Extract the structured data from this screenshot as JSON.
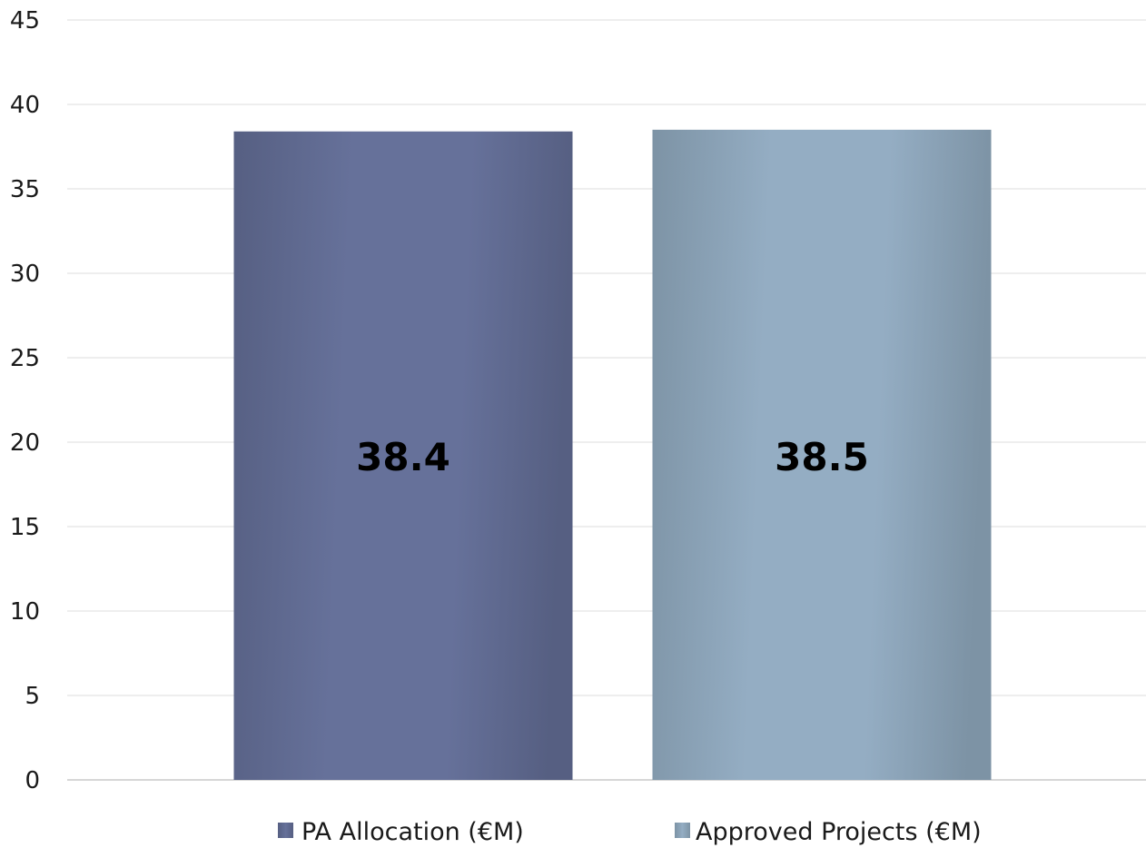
{
  "chart_data": {
    "type": "bar",
    "title": "",
    "xlabel": "",
    "ylabel": "",
    "ylim": [
      0,
      45
    ],
    "yticks": [
      0,
      5,
      10,
      15,
      20,
      25,
      30,
      35,
      40,
      45
    ],
    "grid": true,
    "legend_position": "bottom",
    "series": [
      {
        "name": "PA Allocation (€M)",
        "value": 38.4,
        "label": "38.4",
        "color": "#66719a",
        "edge_color": "#565f82"
      },
      {
        "name": "Approved Projects (€M)",
        "value": 38.5,
        "label": "38.5",
        "color": "#94adc3",
        "edge_color": "#7d93a5"
      }
    ]
  }
}
